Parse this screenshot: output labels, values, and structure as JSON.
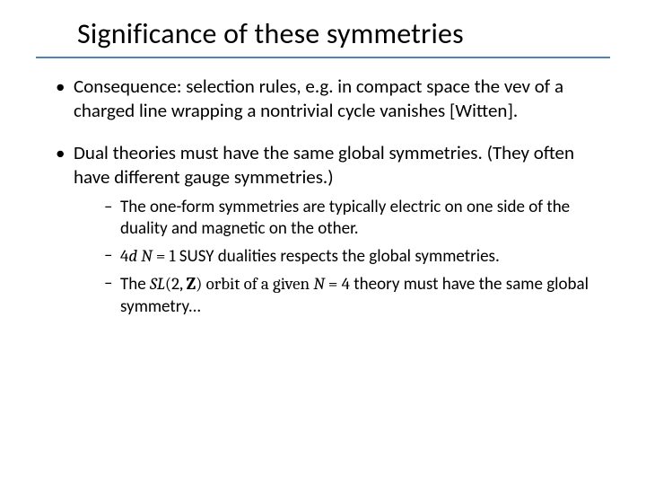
{
  "title": "Significance of these symmetries",
  "accent_color": "#4f81bd",
  "text_color": "#000000",
  "background_color": "#ffffff",
  "title_fontsize": 32,
  "body_fontsize": 21,
  "sub_fontsize": 19,
  "bullets": [
    {
      "text": "Consequence: selection rules, e.g. in compact space the vev of a charged line wrapping a nontrivial cycle vanishes [Witten]."
    },
    {
      "text_a": "Dual theories must have the same global symmetries.",
      "text_b": "  (They often have different gauge symmetries.)",
      "sub": [
        {
          "text": "The one-form symmetries are typically electric on one side of the duality and magnetic on the other."
        },
        {
          "p1": "4",
          "p2": "d  N",
          "p3": " = 1",
          "p4": " SUSY dualities respects the global symmetries."
        },
        {
          "q1": "The ",
          "q2": "SL",
          "q3": "(2, ",
          "q4": "Z",
          "q5": ") orbit of a given ",
          "q6": "N",
          "q7": " = 4",
          "q8": "  theory must have the same global symmetry..."
        }
      ]
    }
  ]
}
